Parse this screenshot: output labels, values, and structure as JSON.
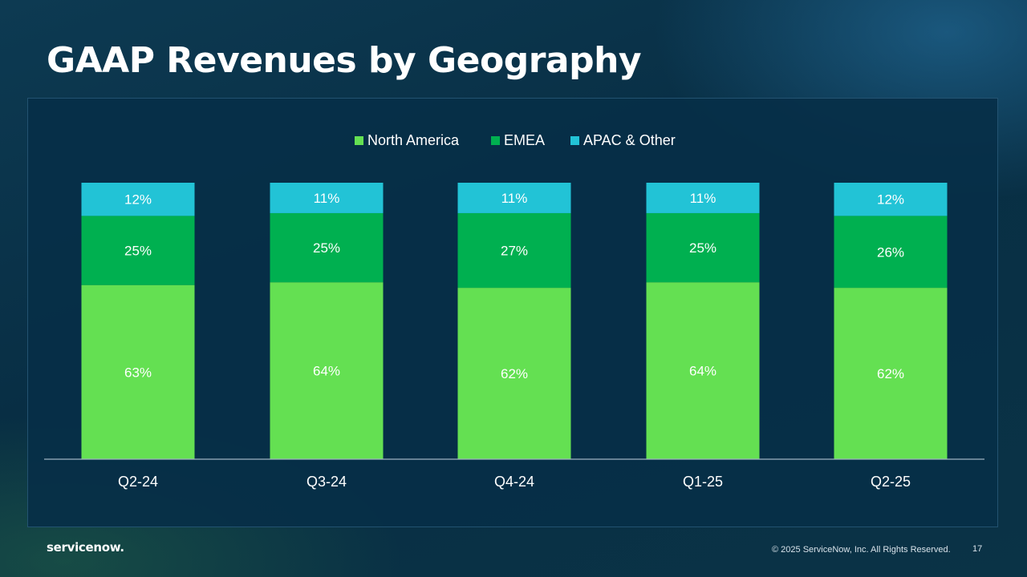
{
  "slide": {
    "title": "GAAP Revenues by Geography",
    "logo_text": "servicenow.",
    "copyright": "© 2025 ServiceNow, Inc. All Rights Reserved.",
    "page_number": "17"
  },
  "colors": {
    "north_america": "#64e052",
    "emea": "#00b050",
    "apac": "#22c3d6",
    "axis": "#9fb3c2",
    "text": "#ffffff"
  },
  "chart_data": {
    "type": "bar",
    "stacked": true,
    "normalized": true,
    "legend_position": "top-center",
    "grid": false,
    "categories": [
      "Q2-24",
      "Q3-24",
      "Q4-24",
      "Q1-25",
      "Q2-25"
    ],
    "series": [
      {
        "name": "North America",
        "values": [
          63,
          64,
          62,
          64,
          62
        ],
        "labels": [
          "63%",
          "64%",
          "62%",
          "64%",
          "62%"
        ]
      },
      {
        "name": "EMEA",
        "values": [
          25,
          25,
          27,
          25,
          26
        ],
        "labels": [
          "25%",
          "25%",
          "27%",
          "25%",
          "26%"
        ]
      },
      {
        "name": "APAC & Other",
        "values": [
          12,
          11,
          11,
          11,
          12
        ],
        "labels": [
          "12%",
          "11%",
          "11%",
          "11%",
          "12%"
        ]
      }
    ],
    "ylim": [
      0,
      100
    ]
  }
}
